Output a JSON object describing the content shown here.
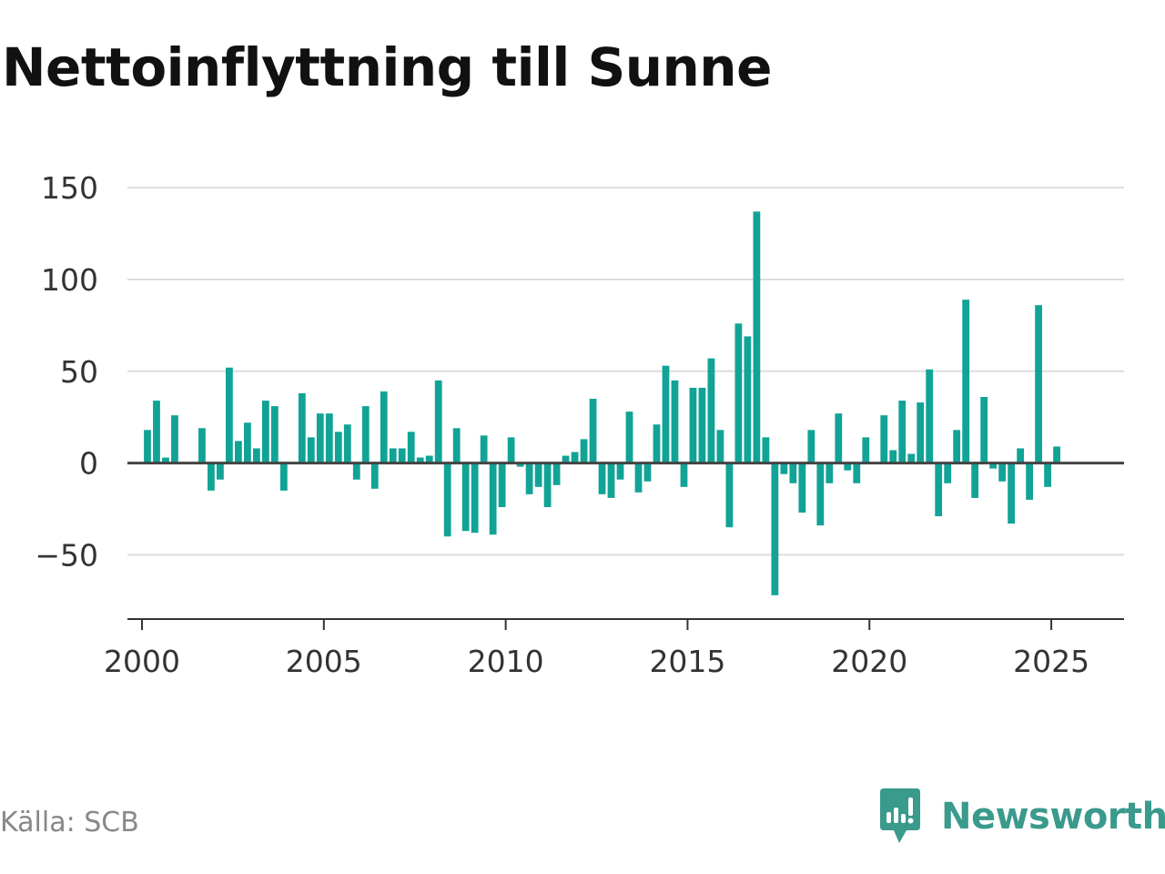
{
  "title": "Nettoinflyttning till Sunne",
  "source": "Källa: SCB",
  "brand": {
    "name": "Newsworthy",
    "icon": "newsworthy-logo-icon",
    "color": "#3a9a8c"
  },
  "colors": {
    "bar": "#11a396",
    "grid": "#dddddd",
    "zero": "#444444",
    "axis": "#333333"
  },
  "chart_data": {
    "type": "bar",
    "title": "Nettoinflyttning till Sunne",
    "xlabel": "",
    "ylabel": "",
    "grid": true,
    "legend": false,
    "xlim": [
      1999.6,
      2027.0
    ],
    "ylim": [
      -85,
      158
    ],
    "yticks": [
      150,
      100,
      50,
      0,
      -50
    ],
    "ytick_labels": [
      "150",
      "100",
      "50",
      "0",
      "−50"
    ],
    "xticks": [
      2000,
      2005,
      2010,
      2015,
      2020,
      2025
    ],
    "xtick_labels": [
      "2000",
      "2005",
      "2010",
      "2015",
      "2020",
      "2025"
    ],
    "series": [
      {
        "x": [
          2000.0,
          2000.25,
          2000.5,
          2000.75,
          2001.0,
          2001.25,
          2001.5,
          2001.75,
          2002.0,
          2002.25,
          2002.5,
          2002.75,
          2003.0,
          2003.25,
          2003.5,
          2003.75,
          2004.0,
          2004.25,
          2004.5,
          2004.75,
          2005.0,
          2005.25,
          2005.5,
          2005.75,
          2006.0,
          2006.25,
          2006.5,
          2006.75,
          2007.0,
          2007.25,
          2007.5,
          2007.75,
          2008.0,
          2008.25,
          2008.5,
          2008.75,
          2009.0,
          2009.25,
          2009.5,
          2009.75,
          2010.0,
          2010.25,
          2010.5,
          2010.75,
          2011.0,
          2011.25,
          2011.5,
          2011.75,
          2012.0,
          2012.25,
          2012.5,
          2012.75,
          2013.0,
          2013.25,
          2013.5,
          2013.75,
          2014.0,
          2014.25,
          2014.5,
          2014.75,
          2015.0,
          2015.25,
          2015.5,
          2015.75,
          2016.0,
          2016.25,
          2016.5,
          2016.75,
          2017.0,
          2017.25,
          2017.5,
          2017.75,
          2018.0,
          2018.25,
          2018.5,
          2018.75,
          2019.0,
          2019.25,
          2019.5,
          2019.75,
          2020.0,
          2020.25,
          2020.5,
          2020.75,
          2021.0,
          2021.25,
          2021.5,
          2021.75,
          2022.0,
          2022.25,
          2022.5,
          2022.75,
          2023.0,
          2023.25,
          2023.5,
          2023.75,
          2024.0,
          2024.25,
          2024.5,
          2024.75,
          2025.0
        ],
        "values": [
          18,
          34,
          3,
          26,
          0,
          0,
          19,
          -15,
          -9,
          52,
          12,
          22,
          8,
          34,
          31,
          -15,
          0,
          38,
          14,
          27,
          27,
          17,
          21,
          -9,
          31,
          -14,
          39,
          8,
          8,
          17,
          3,
          4,
          45,
          -40,
          19,
          -37,
          -38,
          15,
          -39,
          -24,
          14,
          -2,
          -17,
          -13,
          -24,
          -12,
          4,
          6,
          13,
          35,
          -17,
          -19,
          -9,
          28,
          -16,
          -10,
          21,
          53,
          45,
          -13,
          41,
          41,
          57,
          18,
          -35,
          76,
          69,
          137,
          14,
          -72,
          -6,
          -11,
          -27,
          18,
          -34,
          -11,
          27,
          -4,
          -11,
          14,
          0,
          26,
          7,
          34,
          5,
          33,
          51,
          -29,
          -11,
          18,
          89,
          -19,
          36,
          -3,
          -10,
          -33,
          8,
          -20,
          86,
          -13,
          9
        ]
      }
    ]
  }
}
